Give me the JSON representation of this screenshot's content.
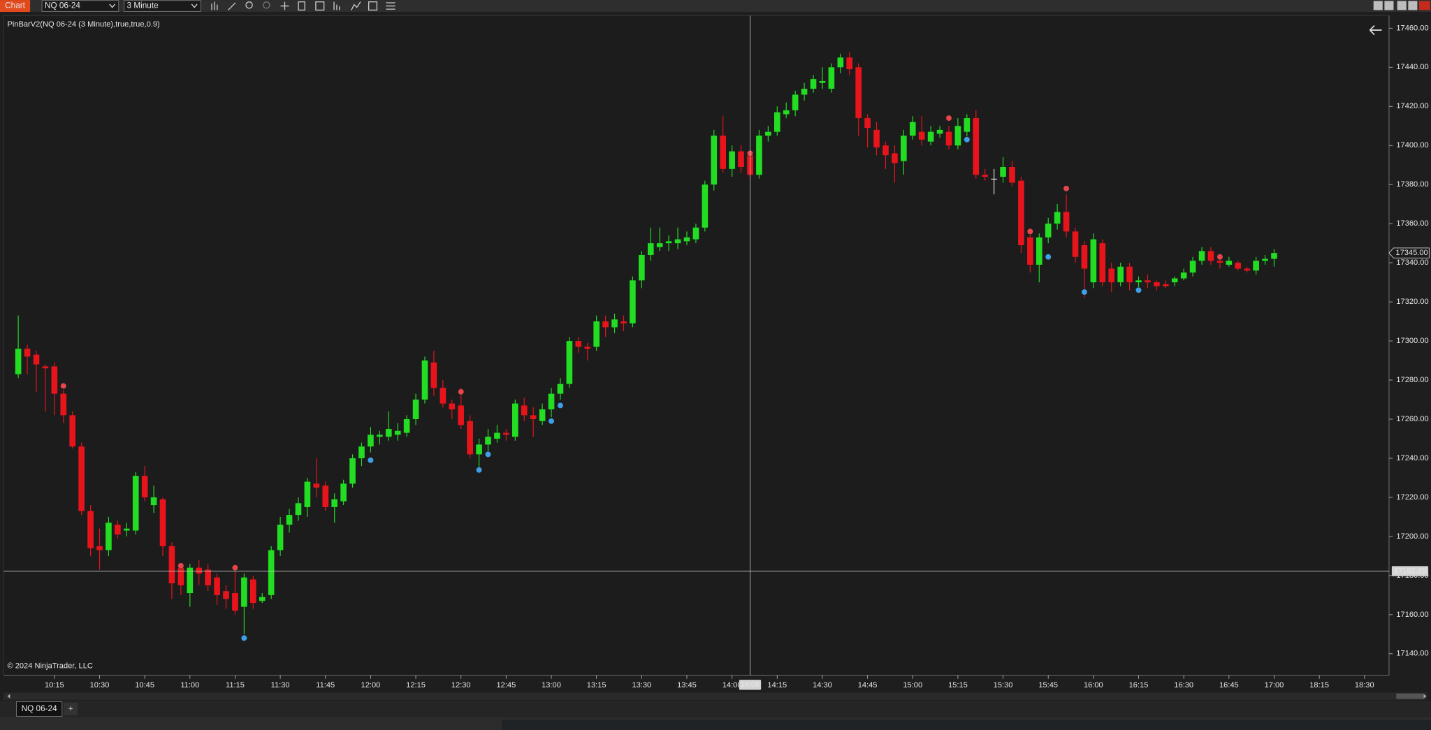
{
  "toolbar": {
    "tab": "Chart",
    "instrument": "NQ 06-24",
    "interval": "3 Minute"
  },
  "chart_data": {
    "type": "candlestick",
    "title": "PinBarV2(NQ 06-24 (3 Minute),true,true,0.9)",
    "x": [
      "10:03",
      "10:06",
      "10:09",
      "10:12",
      "10:15",
      "10:18",
      "10:21",
      "10:24",
      "10:27",
      "10:30",
      "10:33",
      "10:36",
      "10:39",
      "10:42",
      "10:45",
      "10:48",
      "10:51",
      "10:54",
      "10:57",
      "11:00",
      "11:03",
      "11:06",
      "11:09",
      "11:12",
      "11:15",
      "11:18",
      "11:21",
      "11:24",
      "11:27",
      "11:30",
      "11:33",
      "11:36",
      "11:39",
      "11:42",
      "11:45",
      "11:48",
      "11:51",
      "11:54",
      "11:57",
      "12:00",
      "12:03",
      "12:06",
      "12:09",
      "12:12",
      "12:15",
      "12:18",
      "12:21",
      "12:24",
      "12:27",
      "12:30",
      "12:33",
      "12:36",
      "12:39",
      "12:42",
      "12:45",
      "12:48",
      "12:51",
      "12:54",
      "12:57",
      "13:00",
      "13:03",
      "13:06",
      "13:09",
      "13:12",
      "13:15",
      "13:18",
      "13:21",
      "13:24",
      "13:27",
      "13:30",
      "13:33",
      "13:36",
      "13:39",
      "13:42",
      "13:45",
      "13:48",
      "13:51",
      "13:54",
      "13:57",
      "14:00",
      "14:03",
      "14:06",
      "14:09",
      "14:12",
      "14:15",
      "14:18",
      "14:21",
      "14:24",
      "14:27",
      "14:30",
      "14:33",
      "14:36",
      "14:39",
      "14:42",
      "14:45",
      "14:48",
      "14:51",
      "14:54",
      "14:57",
      "15:00",
      "15:03",
      "15:06",
      "15:09",
      "15:12",
      "15:15",
      "15:18",
      "15:21",
      "15:24",
      "15:27",
      "15:30",
      "15:33",
      "15:36",
      "15:39",
      "15:42",
      "15:45",
      "15:48",
      "15:51",
      "15:54",
      "15:57",
      "16:00",
      "16:03",
      "16:06",
      "16:09",
      "16:12",
      "16:15",
      "16:18",
      "16:21",
      "16:24",
      "16:27",
      "16:30",
      "16:33",
      "16:36",
      "16:39",
      "16:42",
      "16:45",
      "16:48",
      "16:51",
      "16:54",
      "16:57",
      "17:00"
    ],
    "open": [
      17283,
      17296,
      17293,
      17287,
      17287,
      17273,
      17262,
      17246,
      17213,
      17195,
      17193,
      17206,
      17203,
      17203,
      17231,
      17216,
      17219,
      17195,
      17184,
      17171,
      17184,
      17183,
      17179,
      17172,
      17171,
      17164,
      17178,
      17167,
      17170,
      17193,
      17206,
      17211,
      17215,
      17227,
      17226,
      17215,
      17218,
      17227,
      17240,
      17246,
      17251,
      17251,
      17252,
      17253,
      17260,
      17270,
      17289,
      17276,
      17268,
      17267,
      17259,
      17242,
      17247,
      17250,
      17253,
      17251,
      17267,
      17262,
      17259,
      17265,
      17273,
      17278,
      17300,
      17297,
      17297,
      17310,
      17307,
      17310,
      17309,
      17331,
      17344,
      17348,
      17350,
      17350,
      17351,
      17352,
      17358,
      17380,
      17405,
      17388,
      17397,
      17395,
      17385,
      17405,
      17407,
      17416,
      17418,
      17426,
      17429,
      17432,
      17429,
      17440,
      17445,
      17440,
      17414,
      17408,
      17400,
      17396,
      17392,
      17405,
      17407,
      17402,
      17406,
      17407,
      17400,
      17407,
      17414,
      17385,
      17383,
      17384,
      17389,
      17382,
      17353,
      17339,
      17353,
      17360,
      17366,
      17356,
      17349,
      17330,
      17350,
      17337,
      17330,
      17338,
      17330,
      17331,
      17330,
      17329,
      17330,
      17332,
      17335,
      17341,
      17346,
      17341,
      17339,
      17340,
      17337,
      17336,
      17341,
      17342
    ],
    "high": [
      17313,
      17298,
      17295,
      17288,
      17289,
      17275,
      17264,
      17248,
      17216,
      17204,
      17210,
      17208,
      17207,
      17233,
      17236,
      17226,
      17220,
      17197,
      17186,
      17186,
      17188,
      17186,
      17181,
      17175,
      17183,
      17181,
      17180,
      17171,
      17195,
      17210,
      17214,
      17220,
      17230,
      17240,
      17228,
      17222,
      17229,
      17242,
      17248,
      17256,
      17254,
      17264,
      17258,
      17262,
      17273,
      17292,
      17295,
      17280,
      17270,
      17276,
      17262,
      17250,
      17255,
      17257,
      17255,
      17270,
      17271,
      17266,
      17268,
      17276,
      17281,
      17302,
      17302,
      17299,
      17313,
      17313,
      17314,
      17313,
      17333,
      17346,
      17358,
      17358,
      17354,
      17358,
      17356,
      17360,
      17382,
      17408,
      17415,
      17400,
      17400,
      17398,
      17408,
      17410,
      17420,
      17422,
      17428,
      17432,
      17436,
      17440,
      17442,
      17447,
      17448,
      17442,
      17416,
      17412,
      17402,
      17400,
      17408,
      17415,
      17415,
      17410,
      17410,
      17410,
      17414,
      17416,
      17418,
      17388,
      17388,
      17394,
      17392,
      17384,
      17356,
      17355,
      17363,
      17370,
      17375,
      17358,
      17351,
      17355,
      17352,
      17340,
      17340,
      17340,
      17333,
      17334,
      17331,
      17331,
      17333,
      17337,
      17343,
      17348,
      17348,
      17342,
      17343,
      17341,
      17338,
      17343,
      17344,
      17347
    ],
    "low": [
      17281,
      17283,
      17274,
      17264,
      17262,
      17258,
      17245,
      17211,
      17190,
      17183,
      17190,
      17199,
      17200,
      17201,
      17218,
      17212,
      17190,
      17168,
      17170,
      17164,
      17175,
      17172,
      17165,
      17163,
      17160,
      17150,
      17163,
      17166,
      17168,
      17190,
      17202,
      17208,
      17210,
      17220,
      17213,
      17207,
      17216,
      17225,
      17236,
      17243,
      17247,
      17249,
      17249,
      17251,
      17257,
      17268,
      17272,
      17266,
      17260,
      17255,
      17240,
      17235,
      17243,
      17248,
      17249,
      17249,
      17259,
      17251,
      17257,
      17261,
      17270,
      17276,
      17294,
      17290,
      17295,
      17302,
      17304,
      17305,
      17307,
      17327,
      17341,
      17346,
      17346,
      17347,
      17349,
      17350,
      17356,
      17377,
      17386,
      17384,
      17386,
      17383,
      17383,
      17402,
      17405,
      17414,
      17415,
      17423,
      17427,
      17429,
      17427,
      17437,
      17436,
      17405,
      17399,
      17395,
      17388,
      17381,
      17385,
      17403,
      17400,
      17400,
      17404,
      17398,
      17398,
      17403,
      17383,
      17382,
      17375,
      17381,
      17379,
      17345,
      17335,
      17330,
      17350,
      17357,
      17353,
      17340,
      17322,
      17327,
      17328,
      17325,
      17328,
      17326,
      17327,
      17327,
      17326,
      17327,
      17328,
      17331,
      17333,
      17339,
      17339,
      17337,
      17338,
      17336,
      17335,
      17334,
      17339,
      17338
    ],
    "close": [
      17296,
      17292,
      17288,
      17286,
      17273,
      17262,
      17246,
      17213,
      17194,
      17193,
      17207,
      17201,
      17204,
      17231,
      17220,
      17220,
      17195,
      17176,
      17175,
      17184,
      17181,
      17175,
      17170,
      17168,
      17162,
      17179,
      17166,
      17169,
      17193,
      17206,
      17211,
      17217,
      17228,
      17225,
      17215,
      17219,
      17227,
      17240,
      17246,
      17252,
      17252,
      17255,
      17254,
      17260,
      17270,
      17290,
      17276,
      17268,
      17265,
      17257,
      17242,
      17247,
      17251,
      17253,
      17252,
      17268,
      17262,
      17260,
      17265,
      17273,
      17278,
      17300,
      17297,
      17296,
      17310,
      17307,
      17311,
      17309,
      17331,
      17344,
      17350,
      17350,
      17351,
      17352,
      17353,
      17358,
      17380,
      17405,
      17388,
      17397,
      17389,
      17385,
      17405,
      17407,
      17417,
      17418,
      17426,
      17429,
      17434,
      17433,
      17440,
      17445,
      17439,
      17414,
      17409,
      17399,
      17395,
      17391,
      17405,
      17412,
      17403,
      17407,
      17408,
      17400,
      17410,
      17414,
      17385,
      17384,
      17383,
      17389,
      17381,
      17349,
      17339,
      17353,
      17360,
      17366,
      17356,
      17343,
      17337,
      17352,
      17330,
      17330,
      17338,
      17330,
      17331,
      17330,
      17328,
      17328,
      17332,
      17335,
      17341,
      17346,
      17341,
      17340,
      17341,
      17337,
      17336,
      17341,
      17342,
      17345
    ],
    "up_color": "#22dd22",
    "down_color": "#e8141c",
    "flat_color": "#d8d8d8",
    "markers": [
      {
        "color": "#e8454a",
        "x": [
          "10:18",
          "10:57",
          "11:15",
          "12:30",
          "14:06",
          "15:12",
          "15:39",
          "15:51",
          "16:42"
        ],
        "values": [
          17277,
          17185,
          17184,
          17274,
          17396,
          17414,
          17356,
          17378,
          17343
        ]
      },
      {
        "color": "#3d9fe6",
        "x": [
          "11:18",
          "12:00",
          "12:36",
          "12:39",
          "13:00",
          "13:03",
          "15:18",
          "15:45",
          "15:57",
          "16:15"
        ],
        "values": [
          17148,
          17239,
          17234,
          17242,
          17259,
          17267,
          17403,
          17343,
          17325,
          17326
        ]
      }
    ],
    "ylim": [
      17129,
      17466
    ],
    "yticks": [
      {
        "value": 17140,
        "label": "17140.00"
      },
      {
        "value": 17160,
        "label": "17160.00"
      },
      {
        "value": 17180,
        "label": "17180.00"
      },
      {
        "value": 17200,
        "label": "17200.00"
      },
      {
        "value": 17220,
        "label": "17220.00"
      },
      {
        "value": 17240,
        "label": "17240.00"
      },
      {
        "value": 17260,
        "label": "17260.00"
      },
      {
        "value": 17280,
        "label": "17280.00"
      },
      {
        "value": 17300,
        "label": "17300.00"
      },
      {
        "value": 17320,
        "label": "17320.00"
      },
      {
        "value": 17340,
        "label": "17340.00"
      },
      {
        "value": 17360,
        "label": "17360.00"
      },
      {
        "value": 17380,
        "label": "17380.00"
      },
      {
        "value": 17400,
        "label": "17400.00"
      },
      {
        "value": 17420,
        "label": "17420.00"
      },
      {
        "value": 17440,
        "label": "17440.00"
      },
      {
        "value": 17460,
        "label": "17460.00"
      }
    ],
    "xticks": [
      "10:15",
      "10:30",
      "10:45",
      "11:00",
      "11:15",
      "11:30",
      "11:45",
      "12:00",
      "12:15",
      "12:30",
      "12:45",
      "13:00",
      "13:15",
      "13:30",
      "13:45",
      "14:00",
      "14:15",
      "14:30",
      "14:45",
      "15:00",
      "15:15",
      "15:30",
      "15:45",
      "16:00",
      "16:15",
      "16:30",
      "16:45",
      "17:00",
      "18:15",
      "18:30"
    ],
    "last_price": {
      "value": 17345,
      "label": "17345.00"
    },
    "crosshair": {
      "x": "14:06",
      "y": 17182.25
    },
    "copyright": "© 2024 NinjaTrader, LLC"
  },
  "tabs": {
    "active": "NQ 06-24",
    "add": "+"
  }
}
